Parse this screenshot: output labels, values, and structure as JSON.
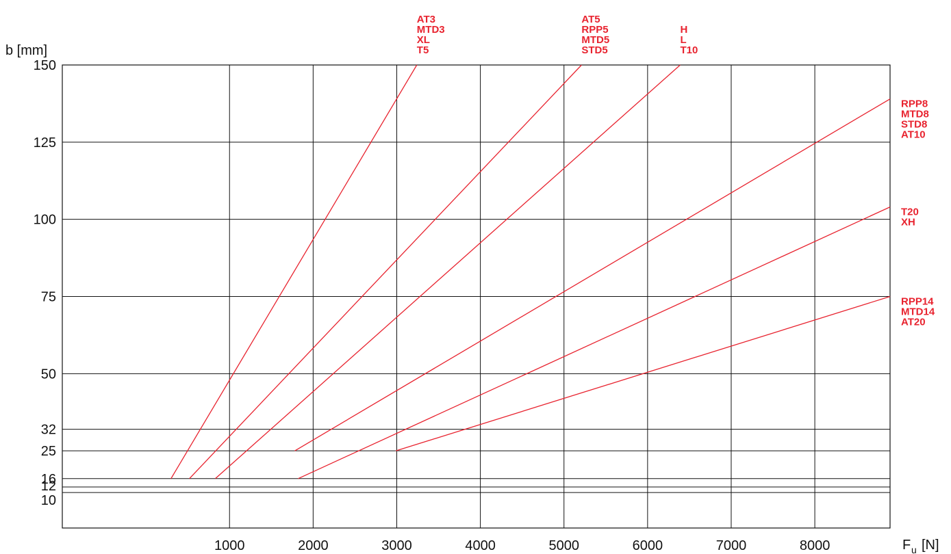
{
  "chart_data": {
    "type": "line",
    "title": "",
    "ylabel": "b [mm]",
    "xlabel": {
      "main": "F",
      "sub": "u",
      "unit": "[N]"
    },
    "xlim": [
      -1000,
      8900
    ],
    "ylim": [
      0,
      150
    ],
    "x_ticks": [
      1000,
      2000,
      3000,
      4000,
      5000,
      6000,
      7000,
      8000
    ],
    "x_tick_labels": [
      "1000",
      "2000",
      "3000",
      "4000",
      "5000",
      "6000",
      "7000",
      "8000"
    ],
    "y_ticks": [
      10,
      12,
      16,
      25,
      32,
      50,
      75,
      100,
      125,
      150
    ],
    "y_tick_labels": [
      "10",
      "12",
      "16",
      "25",
      "32",
      "50",
      "75",
      "100",
      "125",
      "150"
    ],
    "y_tick_positions": [
      11.5,
      13.3,
      16,
      25,
      32,
      50,
      75,
      100,
      125,
      150
    ],
    "grid": true,
    "series": [
      {
        "labels": [
          "AT3",
          "MTD3",
          "XL",
          "T5"
        ],
        "label_anchor": "top",
        "points": [
          [
            300,
            16
          ],
          [
            3240,
            150
          ]
        ]
      },
      {
        "labels": [
          "AT5",
          "RPP5",
          "MTD5",
          "STD5"
        ],
        "label_anchor": "top",
        "points": [
          [
            520,
            16
          ],
          [
            5210,
            150
          ]
        ]
      },
      {
        "labels": [
          "H",
          "L",
          "T10"
        ],
        "label_anchor": "top",
        "points": [
          [
            830,
            16
          ],
          [
            6390,
            150
          ]
        ]
      },
      {
        "labels": [
          "RPP8",
          "MTD8",
          "STD8",
          "AT10"
        ],
        "label_anchor": "right",
        "points": [
          [
            1780,
            25
          ],
          [
            8900,
            139
          ]
        ]
      },
      {
        "labels": [
          "T20",
          "XH"
        ],
        "label_anchor": "right",
        "points": [
          [
            1820,
            16
          ],
          [
            8900,
            104
          ]
        ]
      },
      {
        "labels": [
          "RPP14",
          "MTD14",
          "AT20"
        ],
        "label_anchor": "right",
        "points": [
          [
            2990,
            25
          ],
          [
            8900,
            75
          ]
        ]
      }
    ],
    "colors": {
      "series": "#e8232f",
      "grid": "#111111",
      "text": "#111111"
    }
  }
}
